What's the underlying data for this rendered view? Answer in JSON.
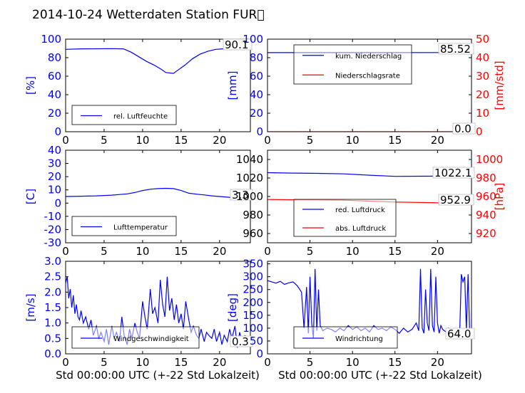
{
  "title": "2014-10-24 Wetterdaten Station FUR\u0000",
  "xlabel": "Std 00:00:00 UTC (+-22 Std Lokalzeit)",
  "colors": {
    "blue": "#0000ff",
    "red": "#ff0000",
    "lightblue": "#8080ff"
  },
  "chart_data": [
    {
      "type": "line",
      "ylabel": "[%]",
      "xlim": [
        0,
        24
      ],
      "ylim": [
        0,
        100
      ],
      "xticks": [
        0,
        5,
        10,
        15,
        20
      ],
      "yticks": [
        0,
        20,
        40,
        60,
        80,
        100
      ],
      "series": [
        {
          "name": "rel. Luftfeuchte",
          "color": "#0000ff",
          "x": [
            0,
            2,
            4,
            6,
            7.5,
            8.5,
            9.5,
            10.5,
            11.5,
            12.5,
            13,
            14,
            14.5,
            15.5,
            16.5,
            17.5,
            18.5,
            19.5,
            20.5,
            22,
            23.8
          ],
          "y": [
            89,
            89.5,
            89.6,
            89.8,
            89.5,
            86,
            81,
            76,
            72,
            67,
            64,
            63,
            66,
            72,
            79,
            84,
            87,
            89,
            89.5,
            90,
            90.1
          ]
        }
      ],
      "last_value": "90.1"
    },
    {
      "type": "line",
      "ylabel": "[mm]",
      "ylabel2": "[mm/std]",
      "xlim": [
        0,
        24
      ],
      "ylim": [
        0,
        100
      ],
      "ylim2": [
        0,
        50
      ],
      "xticks": [
        0,
        5,
        10,
        15,
        20
      ],
      "yticks": [
        0,
        20,
        40,
        60,
        80,
        100
      ],
      "yticks2": [
        0,
        10,
        20,
        30,
        40,
        50
      ],
      "series": [
        {
          "name": "kum. Niederschlag",
          "color": "#0000ff",
          "x": [
            0,
            23.8
          ],
          "y": [
            85.5,
            85.52
          ]
        },
        {
          "name": "Niederschlagsrate",
          "color": "#ff0000",
          "axis": "right",
          "x": [
            0,
            23.8
          ],
          "y": [
            0,
            0
          ]
        }
      ],
      "last_value": "85.52",
      "last_value2": "0.0"
    },
    {
      "type": "line",
      "ylabel": "[C]",
      "xlim": [
        0,
        24
      ],
      "ylim": [
        -30,
        40
      ],
      "xticks": [
        0,
        5,
        10,
        15,
        20
      ],
      "yticks": [
        -30,
        -20,
        -10,
        0,
        10,
        20,
        30,
        40
      ],
      "series": [
        {
          "name": "Lufttemperatur",
          "color": "#0000ff",
          "x": [
            0,
            2,
            4,
            6,
            7,
            8,
            9,
            10,
            11,
            12,
            13,
            14,
            15,
            16,
            17,
            18,
            19,
            20,
            21,
            22,
            23.8
          ],
          "y": [
            5,
            5.2,
            5.5,
            6,
            6.5,
            7,
            8,
            9.5,
            10.5,
            11,
            11.2,
            11,
            9.5,
            7.5,
            6.8,
            6.2,
            5.5,
            5,
            4.5,
            3.9,
            3.3
          ]
        }
      ],
      "last_value": "3.3"
    },
    {
      "type": "line",
      "ylabel2": "[hPa]",
      "xlim": [
        0,
        24
      ],
      "ylim": [
        950,
        1050
      ],
      "ylim2": [
        910,
        1010
      ],
      "xticks": [
        0,
        5,
        10,
        15,
        20
      ],
      "yticks": [
        960,
        980,
        1000,
        1020,
        1040
      ],
      "yticks2": [
        920,
        940,
        960,
        980,
        1000
      ],
      "series": [
        {
          "name": "red. Luftdruck",
          "color": "#0000ff",
          "x": [
            0,
            3,
            6,
            9,
            12,
            15,
            18,
            21,
            23.8
          ],
          "y": [
            1025.8,
            1025.3,
            1025,
            1024.5,
            1023,
            1021.8,
            1021.9,
            1022,
            1022.1
          ]
        },
        {
          "name": "abs. Luftdruck",
          "color": "#ff0000",
          "axis": "right",
          "x": [
            0,
            3,
            6,
            9,
            12,
            15,
            18,
            21,
            23.8
          ],
          "y": [
            956.8,
            956.5,
            956.3,
            956,
            955,
            954,
            953.5,
            953,
            952.9
          ]
        }
      ],
      "last_value": "1022.1",
      "last_value2": "952.9"
    },
    {
      "type": "line",
      "ylabel": "[m/s]",
      "xlim": [
        0,
        24
      ],
      "ylim": [
        0,
        3
      ],
      "xticks": [
        0,
        5,
        10,
        15,
        20
      ],
      "yticks": [
        0.0,
        0.5,
        1.0,
        1.5,
        2.0,
        2.5,
        3.0
      ],
      "series": [
        {
          "name": "Windgeschwindigkeit",
          "color": "#0000ff",
          "x": [
            0,
            0.2,
            0.4,
            0.6,
            0.8,
            1.0,
            1.2,
            1.4,
            1.6,
            1.8,
            2.0,
            2.3,
            2.6,
            3.0,
            3.3,
            3.6,
            4.0,
            4.3,
            4.6,
            5.0,
            5.3,
            5.6,
            6.0,
            6.3,
            6.6,
            7.0,
            7.3,
            7.6,
            8.0,
            8.3,
            8.6,
            9.0,
            9.3,
            9.6,
            10.0,
            10.3,
            10.6,
            11.0,
            11.3,
            11.6,
            12.0,
            12.3,
            12.6,
            12.9,
            13.2,
            13.5,
            13.8,
            14.1,
            14.4,
            14.7,
            15.0,
            15.3,
            15.6,
            16.0,
            16.3,
            16.6,
            17.0,
            17.3,
            17.6,
            18.0,
            18.3,
            18.6,
            19.0,
            19.3,
            19.6,
            20.0,
            20.3,
            20.6,
            21.0,
            21.3,
            21.6,
            22.0,
            22.3,
            22.6,
            23.0,
            23.3,
            23.6
          ],
          "y": [
            2.3,
            2.5,
            1.8,
            2.1,
            1.5,
            1.9,
            1.3,
            1.6,
            1.2,
            1.1,
            1.4,
            1.0,
            1.2,
            0.8,
            1.1,
            0.6,
            0.9,
            0.5,
            0.7,
            0.4,
            0.8,
            0.3,
            0.9,
            0.5,
            0.7,
            0.4,
            1.2,
            0.6,
            0.3,
            0.8,
            0.5,
            1.0,
            0.7,
            0.5,
            1.7,
            1.2,
            0.8,
            2.1,
            1.3,
            1.5,
            1.0,
            2.4,
            1.6,
            1.2,
            2.5,
            1.4,
            1.8,
            1.1,
            1.6,
            1.0,
            1.3,
            0.8,
            1.7,
            1.1,
            0.7,
            0.9,
            0.6,
            0.5,
            0.8,
            0.4,
            0.7,
            0.6,
            0.5,
            0.8,
            0.4,
            0.7,
            0.3,
            0.6,
            0.4,
            0.8,
            0.5,
            0.9,
            0.2,
            0.7,
            0.3,
            0.6,
            0.3
          ]
        }
      ],
      "last_value": "0.3"
    },
    {
      "type": "line",
      "ylabel": "[deg]",
      "xlim": [
        0,
        24
      ],
      "ylim": [
        0,
        360
      ],
      "xticks": [
        0,
        5,
        10,
        15,
        20
      ],
      "yticks": [
        0,
        50,
        100,
        150,
        200,
        250,
        300,
        350
      ],
      "series": [
        {
          "name": "Windrichtung",
          "color": "#0000ff",
          "x": [
            0,
            0.5,
            1,
            1.5,
            2,
            2.5,
            3,
            3.5,
            4,
            4.3,
            4.6,
            4.8,
            5.0,
            5.2,
            5.4,
            5.6,
            5.8,
            6.0,
            6.2,
            6.5,
            7,
            7.5,
            8,
            8.5,
            9,
            9.5,
            10,
            10.5,
            11,
            11.5,
            12,
            12.5,
            13,
            13.5,
            14,
            14.5,
            15,
            15.5,
            16,
            16.5,
            17,
            17.5,
            17.8,
            18.0,
            18.2,
            18.4,
            18.6,
            18.8,
            19.0,
            19.2,
            19.4,
            19.6,
            19.8,
            20.0,
            20.2,
            20.4,
            20.6,
            20.8,
            21.0,
            21.3,
            21.6,
            22.0,
            22.3,
            22.6,
            22.8,
            23.0,
            23.2,
            23.4,
            23.6,
            23.8
          ],
          "y": [
            285,
            280,
            275,
            282,
            270,
            276,
            280,
            265,
            240,
            100,
            260,
            80,
            300,
            120,
            60,
            330,
            90,
            250,
            110,
            90,
            100,
            95,
            85,
            100,
            90,
            110,
            95,
            105,
            90,
            100,
            85,
            110,
            95,
            100,
            90,
            105,
            95,
            80,
            100,
            85,
            95,
            120,
            90,
            330,
            100,
            80,
            250,
            120,
            90,
            330,
            110,
            85,
            300,
            120,
            80,
            110,
            95,
            90,
            85,
            100,
            80,
            75,
            90,
            60,
            310,
            280,
            300,
            90,
            310,
            64
          ]
        }
      ],
      "last_value": "64.0"
    }
  ]
}
